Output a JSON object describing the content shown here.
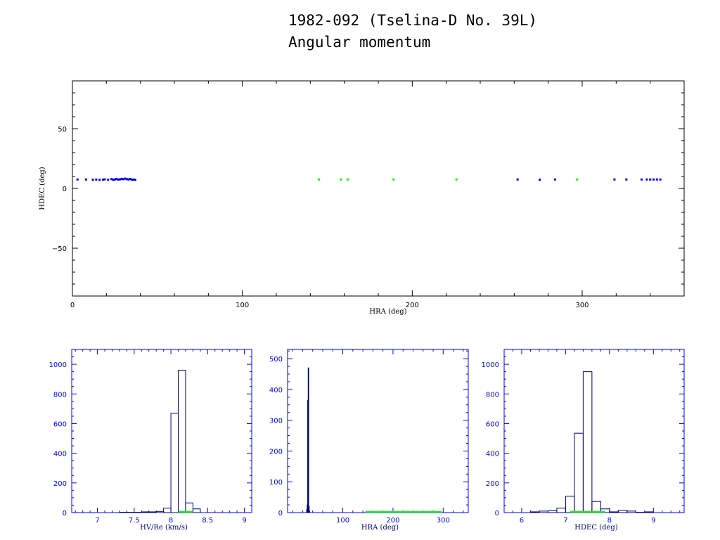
{
  "header": {
    "title_line1": "1982-092 (Tselina-D No. 39L)",
    "title_line2": "Angular momentum"
  },
  "colors": {
    "blue": "#0000ff",
    "navy": "#00007f",
    "green": "#00ff00",
    "black": "#000000"
  },
  "chart_data": [
    {
      "type": "scatter",
      "xlabel": "HRA (deg)",
      "ylabel": "HDEC (deg)",
      "xlim": [
        0,
        360
      ],
      "ylim": [
        -90,
        90
      ],
      "xticks": [
        0,
        100,
        200,
        300
      ],
      "yticks": [
        -50,
        0,
        50
      ],
      "series": [
        {
          "color": "#0000ff",
          "points": [
            [
              3,
              7.5
            ],
            [
              8,
              7.5
            ],
            [
              12,
              7.3
            ],
            [
              14,
              7.4
            ],
            [
              16,
              7.2
            ],
            [
              18,
              7.4
            ],
            [
              19,
              7.6
            ],
            [
              21,
              7.3
            ],
            [
              23,
              7.8
            ],
            [
              24,
              7.2
            ],
            [
              25,
              7.5
            ],
            [
              26,
              7.9
            ],
            [
              27,
              7.4
            ],
            [
              28,
              7.6
            ],
            [
              29,
              8.0
            ],
            [
              30,
              7.7
            ],
            [
              31,
              8.2
            ],
            [
              32,
              7.8
            ],
            [
              33,
              7.5
            ],
            [
              34,
              7.9
            ],
            [
              35,
              7.3
            ],
            [
              36,
              7.4
            ],
            [
              37,
              7.2
            ],
            [
              262,
              7.5
            ],
            [
              275,
              7.3
            ],
            [
              284,
              7.5
            ],
            [
              319,
              7.5
            ],
            [
              326,
              7.5
            ],
            [
              335,
              7.5
            ],
            [
              338,
              7.5
            ],
            [
              340,
              7.5
            ],
            [
              342,
              7.5
            ],
            [
              344,
              7.5
            ],
            [
              346,
              7.5
            ]
          ]
        },
        {
          "color": "#00ff00",
          "points": [
            [
              145,
              7.5
            ],
            [
              158,
              7.5
            ],
            [
              162,
              7.5
            ],
            [
              189,
              7.5
            ],
            [
              226,
              7.5
            ],
            [
              297,
              7.5
            ]
          ]
        }
      ]
    },
    {
      "type": "bar",
      "xlabel": "HV/Re (km/s)",
      "xlim": [
        6.65,
        9.1
      ],
      "ylim": [
        0,
        1100
      ],
      "xticks": [
        7,
        7.5,
        8,
        8.5,
        9
      ],
      "ytick_labels": [
        "0",
        "200",
        "400",
        "600",
        "800",
        "1000"
      ],
      "bin_width": 0.1,
      "bins": [
        {
          "x": 7.35,
          "value": 2
        },
        {
          "x": 7.45,
          "value": 2
        },
        {
          "x": 7.55,
          "value": 2
        },
        {
          "x": 7.65,
          "value": 5
        },
        {
          "x": 7.75,
          "value": 5
        },
        {
          "x": 7.85,
          "value": 8
        },
        {
          "x": 7.95,
          "value": 30
        },
        {
          "x": 8.05,
          "value": 670
        },
        {
          "x": 8.15,
          "value": 960
        },
        {
          "x": 8.25,
          "value": 65
        },
        {
          "x": 8.35,
          "value": 25
        }
      ],
      "baseline_marks": [
        {
          "x0": 8.1,
          "x1": 8.3,
          "color": "#00ff00"
        }
      ]
    },
    {
      "type": "bar",
      "xlabel": "HRA (deg)",
      "xlim": [
        -10,
        350
      ],
      "ylim": [
        0,
        530
      ],
      "xticks": [
        100,
        200,
        300
      ],
      "ytick_labels": [
        "0",
        "100",
        "200",
        "300",
        "400",
        "500"
      ],
      "bin_width": 1,
      "bins": [
        {
          "x": 28.5,
          "value": 10
        },
        {
          "x": 29.5,
          "value": 25
        },
        {
          "x": 30.5,
          "value": 365
        },
        {
          "x": 31.5,
          "value": 470
        },
        {
          "x": 32.5,
          "value": 20
        },
        {
          "x": 33.5,
          "value": 5
        }
      ],
      "baseline_marks": [
        {
          "x0": 145,
          "x1": 297,
          "color": "#00ff00"
        }
      ]
    },
    {
      "type": "bar",
      "xlabel": "HDEC (deg)",
      "xlim": [
        5.6,
        9.7
      ],
      "ylim": [
        0,
        1100
      ],
      "xticks": [
        6,
        7,
        8,
        9
      ],
      "ytick_labels": [
        "0",
        "200",
        "400",
        "600",
        "800",
        "1000"
      ],
      "bin_width": 0.2,
      "bins": [
        {
          "x": 6.3,
          "value": 5
        },
        {
          "x": 6.5,
          "value": 10
        },
        {
          "x": 6.7,
          "value": 12
        },
        {
          "x": 6.9,
          "value": 30
        },
        {
          "x": 7.1,
          "value": 110
        },
        {
          "x": 7.3,
          "value": 535
        },
        {
          "x": 7.5,
          "value": 950
        },
        {
          "x": 7.7,
          "value": 75
        },
        {
          "x": 7.9,
          "value": 25
        },
        {
          "x": 8.1,
          "value": 5
        },
        {
          "x": 8.3,
          "value": 15
        },
        {
          "x": 8.5,
          "value": 10
        },
        {
          "x": 8.7,
          "value": 2
        },
        {
          "x": 8.9,
          "value": 5
        }
      ],
      "baseline_marks": [
        {
          "x0": 7.1,
          "x1": 7.9,
          "color": "#00ff00"
        }
      ]
    }
  ]
}
